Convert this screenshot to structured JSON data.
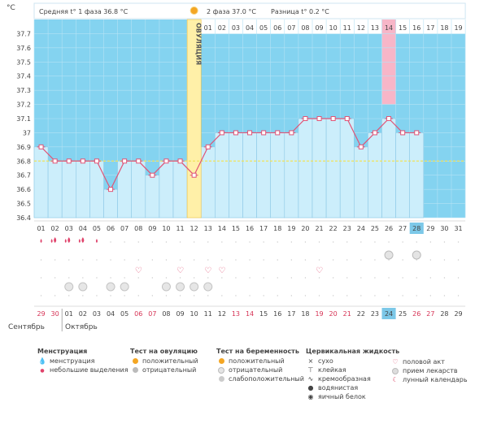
{
  "header": {
    "unit": "°C",
    "phase1_label": "Средняя t° 1 фаза",
    "phase1_value": "36.8 °C",
    "phase2_label": "2 фаза",
    "phase2_value": "37.0 °C",
    "diff_label": "Разница t°",
    "diff_value": "0.2 °C",
    "ovulation_label": "ОВУЛЯЦИЯ"
  },
  "chart_data": {
    "type": "line",
    "ylabel": "°C",
    "ylim": [
      36.4,
      37.8
    ],
    "yticks": [
      "36.4",
      "36.5",
      "36.6",
      "36.7",
      "36.8",
      "36.9",
      "37",
      "37.1",
      "37.2",
      "37.3",
      "37.4",
      "37.5",
      "37.6",
      "37.7"
    ],
    "cycle_days": [
      "01",
      "02",
      "03",
      "04",
      "05",
      "06",
      "07",
      "08",
      "09",
      "10",
      "11",
      "12",
      "13",
      "14",
      "15",
      "16",
      "17",
      "18",
      "19",
      "20",
      "21",
      "22",
      "23",
      "24",
      "25",
      "26",
      "27",
      "28",
      "29",
      "30",
      "31"
    ],
    "x": [
      1,
      2,
      3,
      4,
      5,
      6,
      7,
      8,
      9,
      10,
      11,
      12,
      13,
      14,
      15,
      16,
      17,
      18,
      19,
      20,
      21,
      22,
      23,
      24,
      25,
      26,
      27,
      28
    ],
    "values": [
      36.9,
      36.8,
      36.8,
      36.8,
      36.8,
      36.6,
      36.8,
      36.8,
      36.7,
      36.8,
      36.8,
      36.7,
      36.9,
      37.0,
      37.0,
      37.0,
      37.0,
      37.0,
      37.0,
      37.1,
      37.1,
      37.1,
      37.1,
      36.9,
      37.0,
      37.1,
      37.0,
      37.0
    ],
    "coverline": 36.8,
    "ovulation_day": 12,
    "phase2_days": [
      "01",
      "02",
      "03",
      "04",
      "05",
      "06",
      "07",
      "08",
      "09",
      "10",
      "11",
      "12",
      "13",
      "14",
      "15",
      "16",
      "17",
      "18",
      "19"
    ],
    "highlight_phase2_day": "14",
    "current_cycle_day": "28",
    "dates": [
      "29",
      "30",
      "01",
      "02",
      "03",
      "04",
      "05",
      "06",
      "07",
      "08",
      "09",
      "10",
      "11",
      "12",
      "13",
      "14",
      "15",
      "16",
      "17",
      "18",
      "19",
      "20",
      "21",
      "22",
      "23",
      "24",
      "25",
      "26",
      "27",
      "28",
      "29"
    ],
    "red_dates_idx": [
      0,
      1,
      7,
      8,
      14,
      15,
      20,
      21,
      22,
      27,
      28
    ],
    "current_date_idx": 25,
    "months": [
      "Сентябрь",
      "Октябрь"
    ],
    "grid": true
  },
  "symbols": {
    "menstruation_big": [
      2,
      3,
      4
    ],
    "menstruation_small": [
      1,
      5
    ],
    "intercourse": [
      8,
      11,
      13,
      14,
      21
    ],
    "moon": [
      26,
      28
    ],
    "pill": [
      3,
      4,
      6,
      7,
      10,
      11,
      12,
      13
    ]
  },
  "colors": {
    "plot_bg": "#84d3f0",
    "bar_fill": "#cceefb",
    "bar_stroke": "#8cc8e6",
    "line": "#e05577",
    "ovulation": "#fff0a8",
    "ovulation_edge": "#f0c040",
    "highlight": "#f7b6c8",
    "coverline": "#f1e25a",
    "red_text": "#d63355"
  },
  "legend": {
    "menstruation": {
      "title": "Менструация",
      "items": [
        "менструация",
        "небольшие выделения"
      ]
    },
    "ovulation_test": {
      "title": "Тест на овуляцию",
      "items": [
        "положительный",
        "отрицательный"
      ]
    },
    "pregnancy_test": {
      "title": "Тест на беременность",
      "items": [
        "положительный",
        "отрицательный",
        "слабоположительный"
      ]
    },
    "cervical": {
      "title": "Цервикальная жидкость",
      "items": [
        "сухо",
        "клейкая",
        "кремообразная",
        "водянистая",
        "яичный белок"
      ]
    },
    "other": {
      "items": [
        "половой акт",
        "прием лекарств",
        "лунный календарь"
      ]
    }
  }
}
